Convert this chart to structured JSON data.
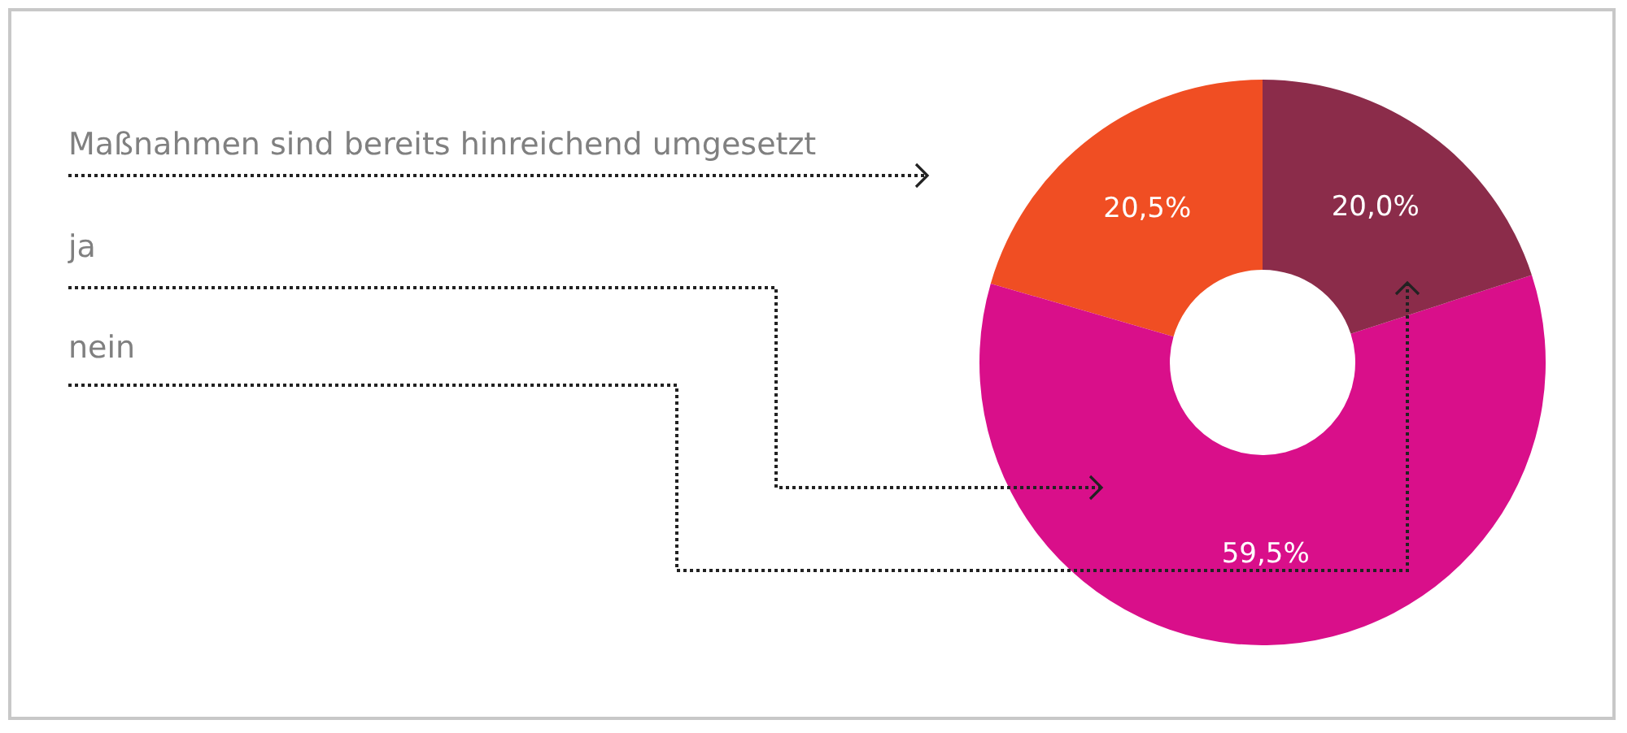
{
  "chart_data": {
    "type": "donut",
    "categories": [
      "Maßnahmen sind bereits hinreichend umgesetzt",
      "ja",
      "nein"
    ],
    "values": [
      20.5,
      59.5,
      20.0
    ],
    "colors": [
      "#f04e23",
      "#d90f8a",
      "#8b2c4a"
    ],
    "value_labels": [
      "20,5%",
      "59,5%",
      "20,0%"
    ]
  }
}
